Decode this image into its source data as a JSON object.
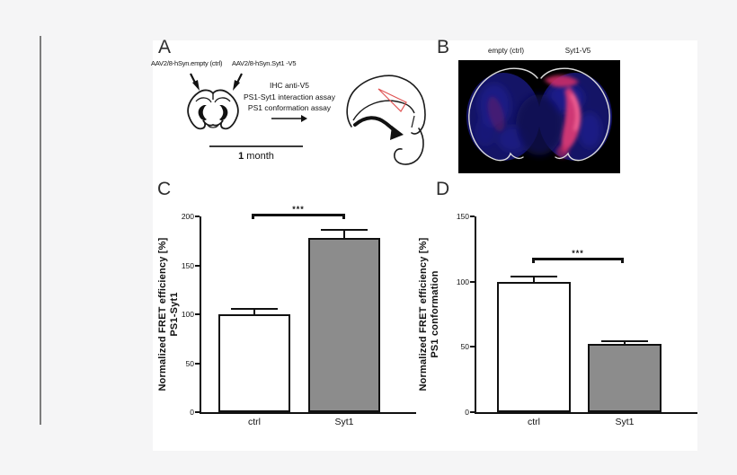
{
  "colors": {
    "page_bg": "#f5f5f6",
    "sheet_bg": "#ffffff",
    "axis": "#111111",
    "bar_ctrl_fill": "#ffffff",
    "bar_syt1_fill": "#8c8c8c",
    "nuclei_stain_blue": "#141466",
    "v5_signal_red": "#e23a75",
    "brain_outline_white": "#dddddd",
    "target_region_red": "#e05555"
  },
  "panels": {
    "a": "A",
    "b": "B",
    "c": "C",
    "d": "D"
  },
  "panel_a": {
    "injection_left": "AAV2/8-hSyn.empty (ctrl)",
    "injection_right": "AAV2/8-hSyn.Syt1 -V5",
    "assay_lines": [
      "IHC anti-V5",
      "PS1-Syt1 interaction assay",
      "PS1 conformation assay"
    ],
    "timeline_value": "1",
    "timeline_unit": " month"
  },
  "panel_b": {
    "col_left": "empty (ctrl)",
    "col_right": "Syt1-V5"
  },
  "chart_data": [
    {
      "id": "ps1_syt1_interaction",
      "type": "bar",
      "ylabel_line1": "Normalized FRET efficiency [%]",
      "ylabel_line2": "PS1-Syt1",
      "categories": [
        "ctrl",
        "Syt1"
      ],
      "values": [
        100,
        178
      ],
      "errors": [
        5,
        7
      ],
      "ylim": [
        0,
        200
      ],
      "yticks": [
        0,
        50,
        100,
        150,
        200
      ],
      "significance": "***",
      "bar_colors": [
        "#ffffff",
        "#8c8c8c"
      ],
      "grid": false,
      "legend": false
    },
    {
      "id": "ps1_conformation",
      "type": "bar",
      "ylabel_line1": "Normalized FRET efficiency [%]",
      "ylabel_line2": "PS1 conformation",
      "categories": [
        "ctrl",
        "Syt1"
      ],
      "values": [
        100,
        52
      ],
      "errors": [
        3,
        2
      ],
      "ylim": [
        0,
        150
      ],
      "yticks": [
        0,
        50,
        100,
        150
      ],
      "significance": "***",
      "bar_colors": [
        "#ffffff",
        "#8c8c8c"
      ],
      "grid": false,
      "legend": false
    }
  ]
}
